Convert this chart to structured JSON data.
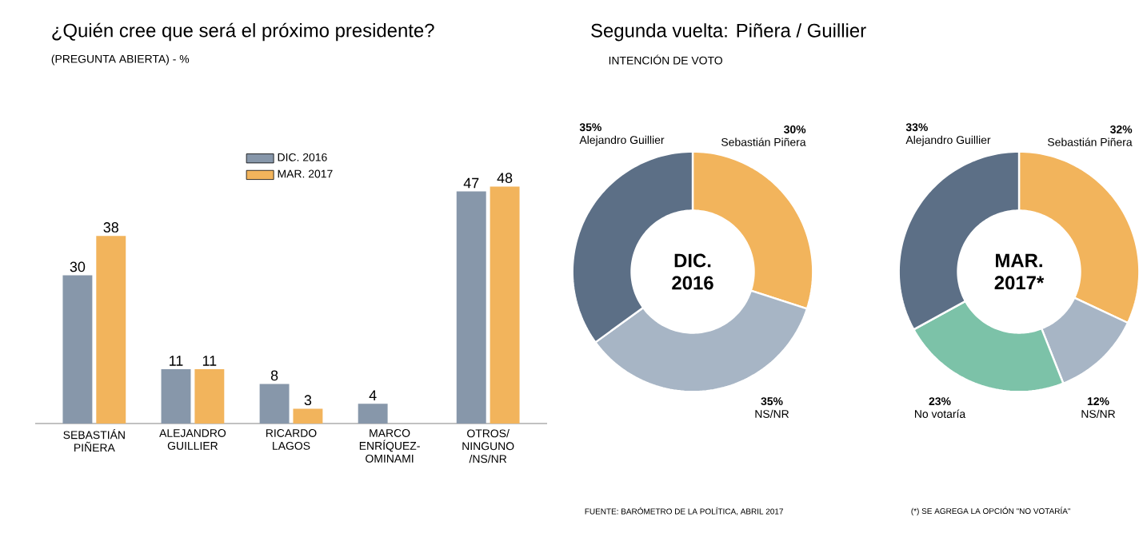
{
  "chart_data": [
    {
      "type": "bar",
      "title": "¿Quién cree que será el próximo presidente?",
      "subtitle": "(PREGUNTA ABIERTA) - %",
      "categories": [
        "SEBASTIÁN PIÑERA",
        "ALEJANDRO GUILLIER",
        "RICARDO LAGOS",
        "MARCO ENRÍQUEZ- OMINAMI",
        "OTROS/ NINGUNO /NS/NR"
      ],
      "series": [
        {
          "name": "DIC. 2016",
          "color": "#8797aa",
          "values": [
            30,
            11,
            8,
            4,
            47
          ]
        },
        {
          "name": "MAR. 2017",
          "color": "#f2b45c",
          "values": [
            38,
            11,
            3,
            null,
            48
          ]
        }
      ],
      "data_labels": true,
      "legend": "top"
    },
    {
      "type": "donut",
      "title": "Segunda vuelta: Piñera / Guillier",
      "subtitle": "INTENCIÓN DE VOTO",
      "categories": [
        "Sebastián Piñera",
        "NS/NR",
        "Alejandro Guillier"
      ],
      "values": [
        30,
        35,
        35
      ],
      "colors": [
        "#f2b45c",
        "#a7b5c5",
        "#5c6f86"
      ],
      "value_labels": [
        "30%",
        "35%",
        "35%"
      ],
      "annotations": [
        "DIC. 2016",
        "FUENTE: BARÓMETRO DE LA POLÍTICA, ABRIL 2017"
      ]
    },
    {
      "type": "donut",
      "categories": [
        "Sebastián Piñera",
        "NS/NR",
        "No votaría",
        "Alejandro Guillier"
      ],
      "values": [
        32,
        12,
        23,
        33
      ],
      "colors": [
        "#f2b45c",
        "#a7b5c5",
        "#7cc2a8",
        "#5c6f86"
      ],
      "value_labels": [
        "32%",
        "12%",
        "23%",
        "33%"
      ],
      "annotations": [
        "MAR. 2017*",
        "(*) SE AGREGA LA OPCIÓN \"NO VOTARÍA\""
      ]
    }
  ]
}
